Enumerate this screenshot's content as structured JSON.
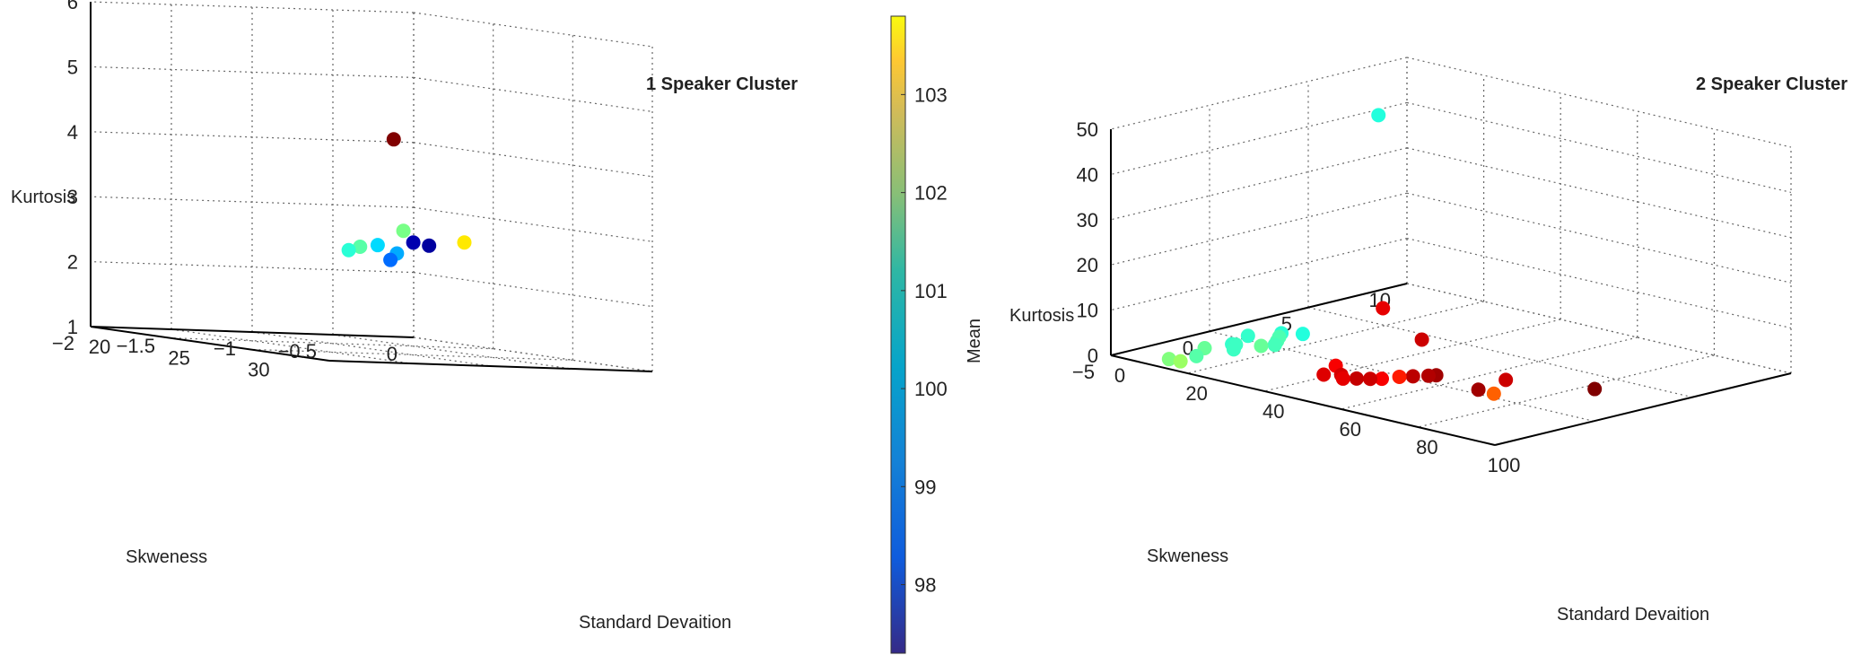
{
  "chart_data": [
    {
      "type": "scatter",
      "title": "1 Speaker Cluster",
      "xlabel": "Standard Devaition",
      "ylabel": "Skweness",
      "zlabel": "Kurtosis",
      "x_ticks": [
        "20",
        "25",
        "30"
      ],
      "y_ticks": [
        "0",
        "−0.5",
        "−1",
        "−1.5",
        "−2"
      ],
      "z_ticks": [
        "1",
        "2",
        "3",
        "4",
        "5",
        "6"
      ],
      "grid": true,
      "points": [
        {
          "x": 22.3,
          "y": -0.35,
          "z": 4.1,
          "mean": 103.8
        },
        {
          "x": 22.4,
          "y": -0.3,
          "z": 2.7,
          "mean": 100.5
        },
        {
          "x": 23.0,
          "y": -0.2,
          "z": 2.5,
          "mean": 97.5
        },
        {
          "x": 24.2,
          "y": -0.1,
          "z": 2.6,
          "mean": 101.5
        },
        {
          "x": 21.5,
          "y": -0.15,
          "z": 2.5,
          "mean": 97.6
        },
        {
          "x": 21.2,
          "y": -0.45,
          "z": 2.4,
          "mean": 100.3
        },
        {
          "x": 21.8,
          "y": -0.4,
          "z": 2.45,
          "mean": 99.5
        },
        {
          "x": 21.5,
          "y": -0.55,
          "z": 2.35,
          "mean": 100.0
        },
        {
          "x": 22.5,
          "y": -0.35,
          "z": 2.35,
          "mean": 99.2
        },
        {
          "x": 22.6,
          "y": -0.4,
          "z": 2.25,
          "mean": 98.8
        }
      ]
    },
    {
      "type": "scatter",
      "title": "2 Speaker Cluster",
      "xlabel": "Standard Devaition",
      "ylabel": "Skweness",
      "zlabel": "Kurtosis",
      "x_ticks": [
        "0",
        "20",
        "40",
        "60",
        "80",
        "100"
      ],
      "y_ticks": [
        "10",
        "5",
        "0",
        "−5"
      ],
      "z_ticks": [
        "0",
        "10",
        "20",
        "30",
        "40",
        "50"
      ],
      "grid": true,
      "points": [
        {
          "x": 8,
          "y": 7,
          "z": 42,
          "mean": 97.4
        },
        {
          "x": 10,
          "y": 0,
          "z": 1,
          "mean": 97.6
        },
        {
          "x": 12,
          "y": -1,
          "z": 0.5,
          "mean": 97.7
        },
        {
          "x": 13,
          "y": 1,
          "z": 0.3,
          "mean": 97.9
        },
        {
          "x": 9,
          "y": -2,
          "z": 0.2,
          "mean": 98.2
        },
        {
          "x": 14,
          "y": -1.5,
          "z": 0.4,
          "mean": 97.7
        },
        {
          "x": 12,
          "y": -3,
          "z": 0.1,
          "mean": 98.0
        },
        {
          "x": 11,
          "y": 1.5,
          "z": 0.2,
          "mean": 97.5
        },
        {
          "x": 15,
          "y": 0.5,
          "z": 0.3,
          "mean": 97.9
        },
        {
          "x": 16,
          "y": -0.5,
          "z": 0.5,
          "mean": 98.2
        },
        {
          "x": 10,
          "y": -4,
          "z": 0.1,
          "mean": 98.5
        },
        {
          "x": 13,
          "y": -4,
          "z": 0.2,
          "mean": 98.8
        },
        {
          "x": 17,
          "y": 0,
          "z": 0.4,
          "mean": 97.8
        },
        {
          "x": 14,
          "y": 2,
          "z": 0.1,
          "mean": 97.4
        },
        {
          "x": 11,
          "y": -1,
          "z": 0.4,
          "mean": 97.6
        },
        {
          "x": 40,
          "y": 1,
          "z": 12,
          "mean": 103.2
        },
        {
          "x": 45,
          "y": 2,
          "z": 5,
          "mean": 103.5
        },
        {
          "x": 38,
          "y": -1,
          "z": 1,
          "mean": 103.0
        },
        {
          "x": 40,
          "y": -2,
          "z": 0.5,
          "mean": 103.3
        },
        {
          "x": 42,
          "y": -1.5,
          "z": 0.3,
          "mean": 103.4
        },
        {
          "x": 44,
          "y": -1.8,
          "z": 0.2,
          "mean": 103.2
        },
        {
          "x": 46,
          "y": -1.5,
          "z": 0.3,
          "mean": 103.6
        },
        {
          "x": 48,
          "y": -1.2,
          "z": 0.3,
          "mean": 103.5
        },
        {
          "x": 50,
          "y": -1,
          "z": 0.5,
          "mean": 103.0
        },
        {
          "x": 52,
          "y": -0.5,
          "z": 0.8,
          "mean": 102.6
        },
        {
          "x": 54,
          "y": -0.2,
          "z": 1,
          "mean": 103.7
        },
        {
          "x": 57,
          "y": 0,
          "z": 1.5,
          "mean": 103.8
        },
        {
          "x": 58,
          "y": 0.2,
          "z": 1.6,
          "mean": 104.0
        },
        {
          "x": 72,
          "y": 1,
          "z": 2.5,
          "mean": 103.5
        },
        {
          "x": 70,
          "y": 0,
          "z": 1,
          "mean": 104.0
        },
        {
          "x": 73,
          "y": 0.2,
          "z": 0.5,
          "mean": 101.8
        },
        {
          "x": 90,
          "y": 2,
          "z": 3,
          "mean": 104.5
        }
      ]
    }
  ],
  "colorbar": {
    "label": "Mean",
    "ticks": [
      "98",
      "99",
      "100",
      "101",
      "102",
      "103"
    ],
    "range": [
      97.3,
      103.8
    ]
  }
}
